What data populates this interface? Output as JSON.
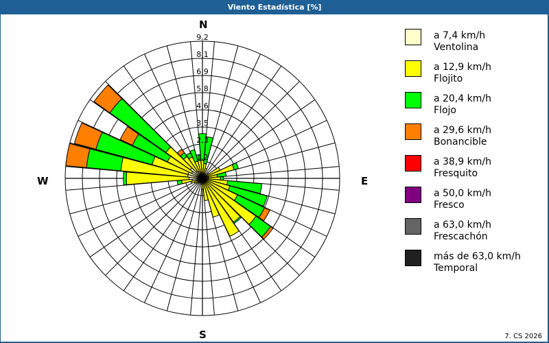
{
  "window": {
    "title": "Viento Estadística [%]"
  },
  "compass": {
    "n": "N",
    "e": "E",
    "s": "S",
    "w": "W"
  },
  "footer": {
    "text": "7. CS 2026"
  },
  "legend": [
    {
      "range": "a 7,4 km/h",
      "name": "Ventolina",
      "color": "#ffffcc"
    },
    {
      "range": "a 12,9 km/h",
      "name": "Flojito",
      "color": "#ffff00"
    },
    {
      "range": "a 20,4 km/h",
      "name": "Flojo",
      "color": "#00ff00"
    },
    {
      "range": "a 29,6 km/h",
      "name": "Bonancible",
      "color": "#ff8000"
    },
    {
      "range": "a 38,9 km/h",
      "name": "Fresquito",
      "color": "#ff0000"
    },
    {
      "range": "a 50,0 km/h",
      "name": "Fresco",
      "color": "#800080"
    },
    {
      "range": "a 63,0 km/h",
      "name": "Frescachón",
      "color": "#646464"
    },
    {
      "range": "más de 63,0 km/h",
      "name": "Temporal",
      "color": "#202020"
    }
  ],
  "chart_data": {
    "type": "polar-stacked-bar",
    "title": "Viento Estadística [%]",
    "unit": "%",
    "ring_labels": [
      "1,2",
      "2,3",
      "3,5",
      "4,6",
      "5,8",
      "6,9",
      "8,1",
      "9,2"
    ],
    "rmax": 9.2,
    "sector_width_deg": 10,
    "series_names": [
      "Ventolina",
      "Flojito",
      "Flojo",
      "Bonancible"
    ],
    "series_colors": [
      "#ffffcc",
      "#ffff00",
      "#00ff00",
      "#ff8000"
    ],
    "sectors": [
      {
        "dir": 0,
        "cum": [
          0.3,
          1.2,
          3.0,
          3.0
        ]
      },
      {
        "dir": 10,
        "cum": [
          0.3,
          1.0,
          2.8,
          2.8
        ]
      },
      {
        "dir": 20,
        "cum": [
          0.3,
          0.7,
          0.7,
          0.7
        ]
      },
      {
        "dir": 30,
        "cum": [
          0.2,
          0.3,
          0.3,
          0.3
        ]
      },
      {
        "dir": 40,
        "cum": [
          0.2,
          0.3,
          0.3,
          0.3
        ]
      },
      {
        "dir": 50,
        "cum": [
          0.2,
          0.5,
          0.5,
          0.5
        ]
      },
      {
        "dir": 60,
        "cum": [
          0.3,
          1.3,
          1.3,
          1.3
        ]
      },
      {
        "dir": 70,
        "cum": [
          0.4,
          2.2,
          2.5,
          2.5
        ]
      },
      {
        "dir": 80,
        "cum": [
          0.4,
          1.0,
          1.6,
          1.6
        ]
      },
      {
        "dir": 90,
        "cum": [
          0.4,
          1.2,
          1.4,
          1.4
        ]
      },
      {
        "dir": 100,
        "cum": [
          0.3,
          1.7,
          4.0,
          4.0
        ]
      },
      {
        "dir": 110,
        "cum": [
          0.3,
          1.9,
          4.5,
          4.5
        ]
      },
      {
        "dir": 120,
        "cum": [
          0.3,
          2.6,
          4.6,
          5.0
        ]
      },
      {
        "dir": 130,
        "cum": [
          0.3,
          4.4,
          5.6,
          5.8
        ]
      },
      {
        "dir": 140,
        "cum": [
          0.3,
          3.6,
          3.7,
          3.7
        ]
      },
      {
        "dir": 150,
        "cum": [
          0.3,
          4.3,
          4.3,
          4.3
        ]
      },
      {
        "dir": 160,
        "cum": [
          0.3,
          2.7,
          2.7,
          2.7
        ]
      },
      {
        "dir": 170,
        "cum": [
          0.2,
          1.5,
          1.5,
          1.5
        ]
      },
      {
        "dir": 180,
        "cum": [
          0.2,
          0.7,
          0.7,
          0.7
        ]
      },
      {
        "dir": 190,
        "cum": [
          0.2,
          0.4,
          0.4,
          0.4
        ]
      },
      {
        "dir": 200,
        "cum": [
          0.2,
          0.3,
          0.3,
          0.3
        ]
      },
      {
        "dir": 210,
        "cum": [
          0.2,
          0.3,
          0.3,
          0.3
        ]
      },
      {
        "dir": 220,
        "cum": [
          0.2,
          0.4,
          0.4,
          0.4
        ]
      },
      {
        "dir": 230,
        "cum": [
          0.2,
          0.5,
          0.5,
          0.5
        ]
      },
      {
        "dir": 240,
        "cum": [
          0.3,
          0.6,
          0.6,
          0.6
        ]
      },
      {
        "dir": 250,
        "cum": [
          0.4,
          0.8,
          0.8,
          0.8
        ]
      },
      {
        "dir": 260,
        "cum": [
          0.7,
          1.4,
          1.7,
          1.7
        ]
      },
      {
        "dir": 270,
        "cum": [
          0.9,
          5.1,
          5.3,
          5.3
        ]
      },
      {
        "dir": 280,
        "cum": [
          1.0,
          5.5,
          7.8,
          9.2
        ]
      },
      {
        "dir": 290,
        "cum": [
          1.0,
          3.5,
          7.4,
          8.9
        ]
      },
      {
        "dir": 300,
        "cum": [
          0.8,
          2.6,
          5.2,
          6.1
        ]
      },
      {
        "dir": 310,
        "cum": [
          1.0,
          3.0,
          7.6,
          8.9
        ]
      },
      {
        "dir": 320,
        "cum": [
          0.6,
          1.8,
          2.1,
          2.4
        ]
      },
      {
        "dir": 330,
        "cum": [
          0.5,
          1.6,
          1.9,
          1.9
        ]
      },
      {
        "dir": 340,
        "cum": [
          0.4,
          1.2,
          2.0,
          2.0
        ]
      },
      {
        "dir": 350,
        "cum": [
          0.4,
          1.2,
          1.6,
          1.6
        ]
      }
    ]
  }
}
